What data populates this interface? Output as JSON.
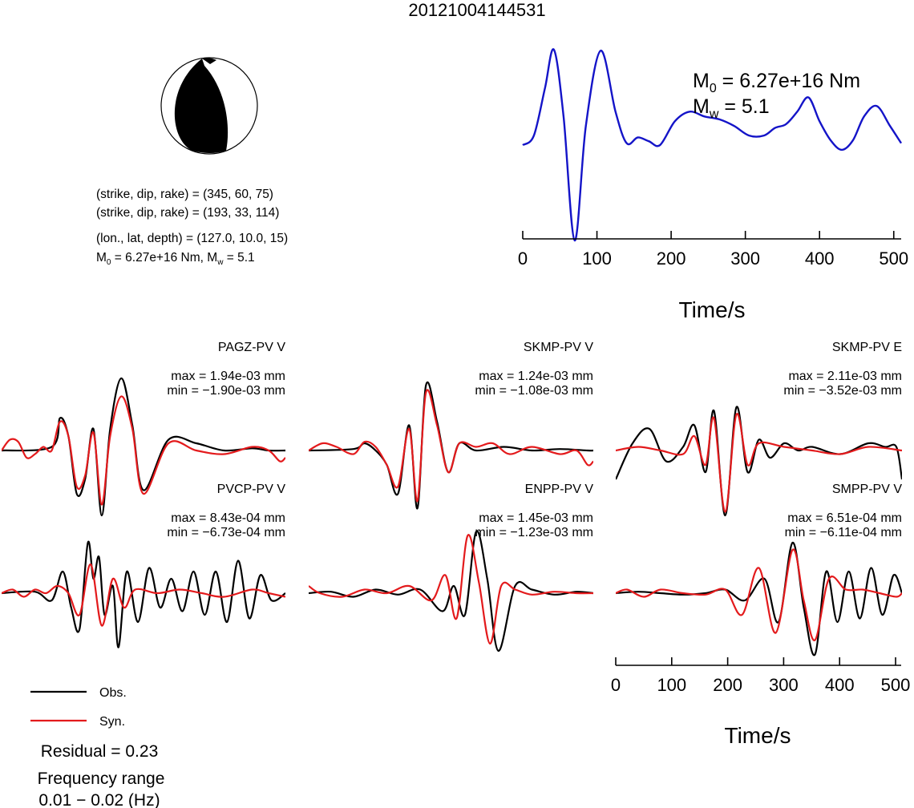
{
  "title": "20121004144531",
  "mechanism": {
    "plane1": "(strike, dip, rake) = (345, 60, 75)",
    "plane2": "(strike, dip, rake) = (193, 33, 114)",
    "location": "(lon., lat, depth) = (127.0, 10.0, 15)",
    "moment_line": {
      "m0_symbol": "M",
      "m0_sub": "0",
      "m0_value": " = 6.27e+16 Nm, ",
      "mw_symbol": "M",
      "mw_sub": "w",
      "mw_value": " = 5.1"
    }
  },
  "stf_panel": {
    "m0_symbol": "M",
    "m0_sub": "0",
    "m0_value": " = 6.27e+16 Nm",
    "mw_symbol": "M",
    "mw_sub": "w",
    "mw_value": " = 5.1",
    "xlabel": "Time/s",
    "xticks": [
      "0",
      "100",
      "200",
      "300",
      "400",
      "500"
    ]
  },
  "waveform_axis": {
    "xlabel": "Time/s",
    "xticks": [
      "0",
      "100",
      "200",
      "300",
      "400",
      "500"
    ]
  },
  "legend": {
    "obs": "Obs.",
    "syn": "Syn.",
    "obs_color": "#000000",
    "syn_color": "#e31a1c"
  },
  "residual": "Residual = 0.23",
  "freq_label": "Frequency range",
  "freq_value": "0.01 − 0.02 (Hz)",
  "colors": {
    "stf": "#1414c8",
    "obs": "#000000",
    "syn": "#e31a1c"
  },
  "chart_data": [
    {
      "type": "line",
      "name": "source-time-function",
      "xlim": [
        0,
        510
      ],
      "x": [
        0,
        15,
        30,
        42,
        55,
        70,
        85,
        105,
        125,
        140,
        155,
        170,
        185,
        205,
        225,
        245,
        265,
        285,
        305,
        325,
        340,
        355,
        370,
        385,
        400,
        415,
        430,
        445,
        460,
        477,
        495,
        510
      ],
      "values": [
        0.0,
        0.1,
        0.6,
        1.0,
        0.3,
        -1.0,
        0.2,
        0.99,
        0.35,
        0.02,
        0.08,
        0.04,
        0.0,
        0.25,
        0.35,
        0.3,
        0.27,
        0.2,
        0.1,
        0.1,
        0.18,
        0.22,
        0.35,
        0.5,
        0.25,
        0.05,
        -0.05,
        0.05,
        0.3,
        0.41,
        0.2,
        0.02
      ]
    },
    {
      "type": "line",
      "station": "PAGZ-PV V",
      "max": "max = 1.94e-03 mm",
      "min": "min = −1.90e-03 mm",
      "xlim": [
        0,
        510
      ],
      "series": [
        {
          "name": "Obs.",
          "x": [
            0,
            90,
            105,
            120,
            135,
            150,
            165,
            180,
            195,
            215,
            235,
            255,
            300,
            350,
            400,
            450,
            480,
            510
          ],
          "values": [
            0.0,
            0.05,
            0.45,
            0.2,
            -0.6,
            -0.4,
            0.3,
            -0.9,
            0.3,
            1.0,
            0.35,
            -0.55,
            0.15,
            0.1,
            0.0,
            0.03,
            0.0,
            0.0
          ]
        },
        {
          "name": "Syn.",
          "x": [
            0,
            15,
            30,
            45,
            60,
            75,
            90,
            105,
            120,
            135,
            150,
            165,
            180,
            195,
            215,
            235,
            255,
            300,
            350,
            400,
            450,
            480,
            500,
            510
          ],
          "values": [
            0.0,
            0.15,
            0.12,
            -0.1,
            -0.05,
            0.05,
            0.0,
            0.4,
            0.2,
            -0.5,
            -0.35,
            0.25,
            -0.75,
            0.2,
            0.75,
            0.3,
            -0.6,
            0.1,
            0.0,
            -0.05,
            0.05,
            0.0,
            -0.15,
            -0.1
          ]
        }
      ]
    },
    {
      "type": "line",
      "station": "SKMP-PV V",
      "max": "max = 1.24e-03 mm",
      "min": "min = −1.08e-03 mm",
      "xlim": [
        0,
        510
      ],
      "series": [
        {
          "name": "Obs.",
          "x": [
            0,
            80,
            100,
            120,
            140,
            160,
            180,
            195,
            210,
            230,
            250,
            270,
            300,
            350,
            400,
            450,
            500,
            510
          ],
          "values": [
            0.0,
            0.02,
            0.1,
            0.0,
            -0.2,
            -0.6,
            0.35,
            -0.8,
            0.9,
            0.4,
            -0.3,
            0.1,
            0.0,
            0.05,
            0.0,
            0.02,
            0.0,
            0.0
          ]
        },
        {
          "name": "Syn.",
          "x": [
            0,
            25,
            50,
            80,
            100,
            120,
            140,
            160,
            180,
            195,
            210,
            230,
            250,
            270,
            300,
            330,
            360,
            400,
            450,
            480,
            500,
            510
          ],
          "values": [
            0.0,
            0.1,
            0.05,
            -0.05,
            0.12,
            0.05,
            -0.2,
            -0.5,
            0.3,
            -0.7,
            0.8,
            0.35,
            -0.3,
            0.1,
            0.05,
            0.1,
            -0.05,
            0.05,
            -0.05,
            0.0,
            -0.2,
            -0.15
          ]
        }
      ]
    },
    {
      "type": "line",
      "station": "SKMP-PV E",
      "max": "max = 2.11e-03 mm",
      "min": "min = −3.52e-03 mm",
      "xlim": [
        0,
        510
      ],
      "series": [
        {
          "name": "Obs.",
          "x": [
            0,
            30,
            60,
            90,
            120,
            140,
            160,
            175,
            195,
            215,
            235,
            255,
            275,
            300,
            325,
            350,
            400,
            450,
            480,
            500,
            510
          ],
          "values": [
            -0.4,
            0.1,
            0.3,
            -0.15,
            0.05,
            0.35,
            -0.3,
            0.55,
            -0.9,
            0.6,
            -0.3,
            0.15,
            -0.1,
            0.1,
            0.0,
            0.05,
            -0.05,
            0.1,
            0.05,
            0.05,
            -0.4
          ]
        },
        {
          "name": "Syn.",
          "x": [
            0,
            40,
            80,
            120,
            140,
            160,
            175,
            195,
            215,
            235,
            255,
            300,
            350,
            400,
            450,
            510
          ],
          "values": [
            0.0,
            0.05,
            0.0,
            -0.05,
            0.2,
            -0.2,
            0.45,
            -0.85,
            0.5,
            -0.2,
            0.1,
            0.05,
            0.0,
            -0.05,
            0.05,
            0.0
          ]
        }
      ]
    },
    {
      "type": "line",
      "station": "PVCP-PV V",
      "max": "max = 8.43e-04 mm",
      "min": "min = −6.73e-04 mm",
      "xlim": [
        0,
        510
      ],
      "series": [
        {
          "name": "Obs.",
          "x": [
            0,
            60,
            90,
            110,
            125,
            140,
            155,
            165,
            175,
            185,
            200,
            210,
            225,
            245,
            265,
            285,
            305,
            325,
            345,
            365,
            385,
            405,
            425,
            445,
            465,
            485,
            510
          ],
          "values": [
            0.0,
            0.02,
            -0.1,
            0.3,
            -0.2,
            -0.5,
            0.7,
            0.2,
            0.5,
            -0.3,
            0.1,
            -0.75,
            0.3,
            -0.4,
            0.35,
            -0.2,
            0.2,
            -0.25,
            0.3,
            -0.3,
            0.3,
            -0.4,
            0.45,
            -0.35,
            0.25,
            -0.1,
            0.0
          ]
        },
        {
          "name": "Syn.",
          "x": [
            0,
            20,
            40,
            60,
            80,
            100,
            120,
            140,
            160,
            180,
            200,
            220,
            240,
            280,
            320,
            360,
            400,
            450,
            480,
            510
          ],
          "values": [
            0.0,
            0.05,
            -0.05,
            0.05,
            0.0,
            0.1,
            0.0,
            -0.3,
            0.4,
            -0.45,
            0.2,
            -0.2,
            0.05,
            0.0,
            0.05,
            0.0,
            -0.05,
            0.05,
            0.0,
            -0.05
          ]
        }
      ]
    },
    {
      "type": "line",
      "station": "ENPP-PV V",
      "max": "max = 1.45e-03 mm",
      "min": "min = −1.23e-03 mm",
      "xlim": [
        0,
        510
      ],
      "series": [
        {
          "name": "Obs.",
          "x": [
            0,
            40,
            80,
            120,
            160,
            200,
            240,
            260,
            280,
            300,
            320,
            340,
            370,
            400,
            440,
            480,
            510
          ],
          "values": [
            0.0,
            0.02,
            -0.05,
            0.05,
            -0.02,
            0.05,
            -0.25,
            0.1,
            -0.3,
            0.85,
            0.2,
            -0.8,
            0.1,
            0.05,
            -0.02,
            0.02,
            0.0
          ]
        },
        {
          "name": "Syn.",
          "x": [
            0,
            20,
            60,
            100,
            140,
            180,
            220,
            245,
            265,
            285,
            305,
            325,
            345,
            370,
            400,
            440,
            480,
            510
          ],
          "values": [
            0.1,
            0.0,
            -0.05,
            0.05,
            0.0,
            0.1,
            -0.1,
            0.25,
            -0.35,
            0.8,
            0.15,
            -0.7,
            0.1,
            0.05,
            -0.02,
            0.02,
            0.0,
            0.0
          ]
        }
      ]
    },
    {
      "type": "line",
      "station": "SMPP-PV V",
      "max": "max = 6.51e-04 mm",
      "min": "min = −6.11e-04 mm",
      "xlim": [
        0,
        510
      ],
      "series": [
        {
          "name": "Obs.",
          "x": [
            0,
            40,
            80,
            120,
            160,
            195,
            230,
            265,
            290,
            315,
            335,
            355,
            375,
            395,
            415,
            435,
            455,
            475,
            495,
            510
          ],
          "values": [
            0.0,
            0.02,
            0.0,
            -0.02,
            0.0,
            0.05,
            -0.1,
            0.2,
            -0.4,
            0.7,
            -0.2,
            -0.85,
            0.3,
            -0.4,
            0.3,
            -0.35,
            0.35,
            -0.3,
            0.25,
            0.0
          ]
        },
        {
          "name": "Syn.",
          "x": [
            0,
            20,
            50,
            80,
            120,
            160,
            195,
            225,
            255,
            285,
            315,
            335,
            355,
            380,
            410,
            440,
            470,
            500,
            510
          ],
          "values": [
            0.0,
            0.05,
            -0.05,
            0.05,
            0.0,
            -0.02,
            0.05,
            -0.3,
            0.35,
            -0.55,
            0.6,
            -0.1,
            -0.65,
            0.2,
            0.05,
            0.05,
            0.0,
            -0.05,
            0.0
          ]
        }
      ]
    }
  ]
}
